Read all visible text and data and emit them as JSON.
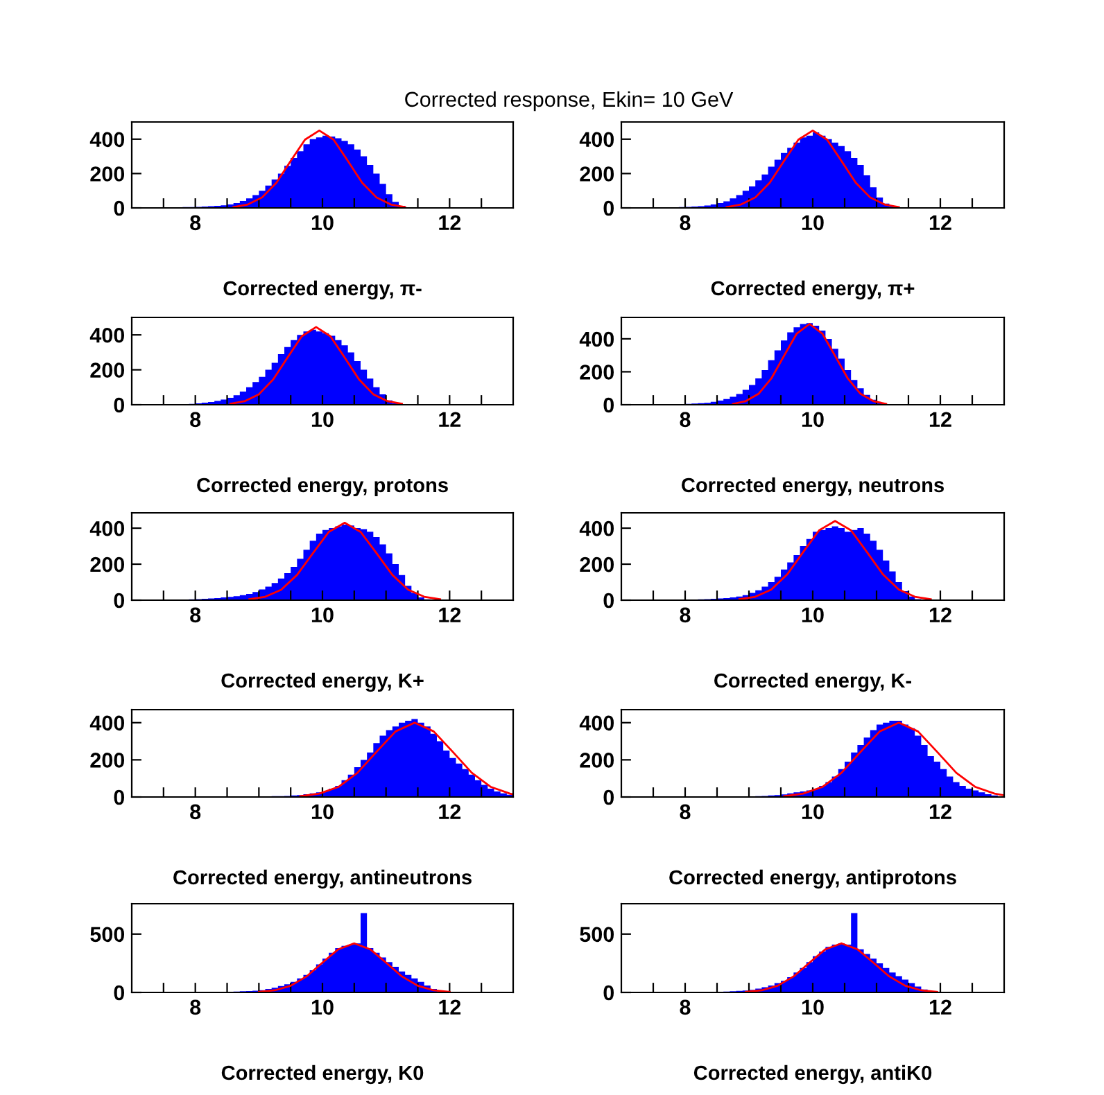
{
  "chart_data": [
    {
      "type": "histogram",
      "title": "Corrected response, Ekin= 10 GeV",
      "xlabel": "Corrected energy, π-",
      "xlim": [
        7,
        13
      ],
      "ylim": [
        0,
        500
      ],
      "xticks": [
        {
          "value": 7.5,
          "label": null
        },
        8,
        {
          "value": 8.5,
          "label": null
        },
        {
          "value": 9,
          "label": null
        },
        {
          "value": 9.5,
          "label": null
        },
        10,
        {
          "value": 10.5,
          "label": null
        },
        {
          "value": 11,
          "label": null
        },
        {
          "value": 11.5,
          "label": null
        },
        12,
        {
          "value": 12.5,
          "label": null
        }
      ],
      "yticks": [
        0,
        200,
        400
      ],
      "grid": false,
      "legend": false,
      "bins": [
        7.0,
        7.1,
        7.2,
        7.3,
        7.4,
        7.5,
        7.6,
        7.7,
        7.8,
        7.9,
        8.0,
        8.1,
        8.2,
        8.3,
        8.4,
        8.5,
        8.6,
        8.7,
        8.8,
        8.9,
        9.0,
        9.1,
        9.2,
        9.3,
        9.4,
        9.5,
        9.6,
        9.7,
        9.8,
        9.9,
        10.0,
        10.1,
        10.2,
        10.3,
        10.4,
        10.5,
        10.6,
        10.7,
        10.8,
        10.9,
        11.0,
        11.1,
        11.2,
        11.3,
        11.4,
        11.5,
        11.6,
        11.7,
        11.8,
        11.9,
        12.0,
        12.1,
        12.2,
        12.3,
        12.4,
        12.5,
        12.6,
        12.7,
        12.8,
        12.9,
        13.0
      ],
      "series": [
        {
          "type": "histogram",
          "color": "#0000ff",
          "values": [
            2,
            2,
            2,
            3,
            3,
            3,
            4,
            4,
            5,
            5,
            6,
            8,
            10,
            12,
            15,
            20,
            28,
            40,
            55,
            75,
            100,
            130,
            165,
            200,
            245,
            290,
            330,
            370,
            400,
            410,
            420,
            415,
            405,
            390,
            370,
            340,
            300,
            250,
            200,
            140,
            80,
            35,
            12,
            4,
            2,
            1,
            0,
            0,
            0,
            0,
            0,
            0,
            0,
            0,
            0,
            0,
            0,
            0,
            0,
            0
          ]
        },
        {
          "type": "line",
          "color": "#ff0000",
          "x": [
            8.6,
            8.825,
            9.05,
            9.275,
            9.5,
            9.725,
            9.95,
            10.175,
            10.4,
            10.625,
            10.85,
            11.075,
            11.3
          ],
          "values": [
            5,
            20,
            61,
            146,
            273,
            397,
            450,
            397,
            273,
            146,
            61,
            20,
            5
          ]
        }
      ]
    },
    {
      "type": "histogram",
      "xlabel": "Corrected energy, π+",
      "xlim": [
        7,
        13
      ],
      "ylim": [
        0,
        500
      ],
      "xticks": [
        {
          "value": 7.5,
          "label": null
        },
        8,
        {
          "value": 8.5,
          "label": null
        },
        {
          "value": 9,
          "label": null
        },
        {
          "value": 9.5,
          "label": null
        },
        10,
        {
          "value": 10.5,
          "label": null
        },
        {
          "value": 11,
          "label": null
        },
        {
          "value": 11.5,
          "label": null
        },
        12,
        {
          "value": 12.5,
          "label": null
        }
      ],
      "yticks": [
        0,
        200,
        400
      ],
      "grid": false,
      "legend": false,
      "bins": [
        7.0,
        7.1,
        7.2,
        7.3,
        7.4,
        7.5,
        7.6,
        7.7,
        7.8,
        7.9,
        8.0,
        8.1,
        8.2,
        8.3,
        8.4,
        8.5,
        8.6,
        8.7,
        8.8,
        8.9,
        9.0,
        9.1,
        9.2,
        9.3,
        9.4,
        9.5,
        9.6,
        9.7,
        9.8,
        9.9,
        10.0,
        10.1,
        10.2,
        10.3,
        10.4,
        10.5,
        10.6,
        10.7,
        10.8,
        10.9,
        11.0,
        11.1,
        11.2,
        11.3,
        11.4,
        11.5,
        11.6,
        11.7,
        11.8,
        11.9,
        12.0,
        12.1,
        12.2,
        12.3,
        12.4,
        12.5,
        12.6,
        12.7,
        12.8,
        12.9,
        13.0
      ],
      "series": [
        {
          "type": "histogram",
          "color": "#0000ff",
          "values": [
            1,
            1,
            2,
            2,
            2,
            3,
            3,
            3,
            4,
            5,
            6,
            8,
            10,
            14,
            20,
            28,
            38,
            55,
            75,
            100,
            125,
            160,
            195,
            240,
            280,
            320,
            350,
            380,
            410,
            420,
            440,
            420,
            400,
            380,
            360,
            330,
            290,
            250,
            190,
            120,
            60,
            25,
            8,
            3,
            1,
            0,
            0,
            0,
            0,
            0,
            0,
            0,
            0,
            0,
            0,
            0,
            0,
            0,
            0,
            0
          ]
        },
        {
          "type": "line",
          "color": "#ff0000",
          "x": [
            8.65,
            8.875,
            9.1,
            9.325,
            9.55,
            9.775,
            10.0,
            10.225,
            10.45,
            10.675,
            10.9,
            11.125,
            11.35
          ],
          "values": [
            5,
            20,
            61,
            146,
            273,
            397,
            450,
            397,
            273,
            146,
            61,
            20,
            5
          ]
        }
      ]
    },
    {
      "type": "histogram",
      "xlabel": "Corrected energy, protons",
      "xlim": [
        7,
        13
      ],
      "ylim": [
        0,
        500
      ],
      "xticks": [
        {
          "value": 7.5,
          "label": null
        },
        8,
        {
          "value": 8.5,
          "label": null
        },
        {
          "value": 9,
          "label": null
        },
        {
          "value": 9.5,
          "label": null
        },
        10,
        {
          "value": 10.5,
          "label": null
        },
        {
          "value": 11,
          "label": null
        },
        {
          "value": 11.5,
          "label": null
        },
        12,
        {
          "value": 12.5,
          "label": null
        }
      ],
      "yticks": [
        0,
        200,
        400
      ],
      "grid": false,
      "legend": false,
      "bins": [
        7.0,
        7.1,
        7.2,
        7.3,
        7.4,
        7.5,
        7.6,
        7.7,
        7.8,
        7.9,
        8.0,
        8.1,
        8.2,
        8.3,
        8.4,
        8.5,
        8.6,
        8.7,
        8.8,
        8.9,
        9.0,
        9.1,
        9.2,
        9.3,
        9.4,
        9.5,
        9.6,
        9.7,
        9.8,
        9.9,
        10.0,
        10.1,
        10.2,
        10.3,
        10.4,
        10.5,
        10.6,
        10.7,
        10.8,
        10.9,
        11.0,
        11.1,
        11.2,
        11.3,
        11.4,
        11.5,
        11.6,
        11.7,
        11.8,
        11.9,
        12.0,
        12.1,
        12.2,
        12.3,
        12.4,
        12.5,
        12.6,
        12.7,
        12.8,
        12.9,
        13.0
      ],
      "series": [
        {
          "type": "histogram",
          "color": "#0000ff",
          "values": [
            1,
            1,
            1,
            2,
            2,
            2,
            3,
            3,
            4,
            5,
            8,
            12,
            16,
            22,
            30,
            40,
            55,
            75,
            100,
            130,
            160,
            200,
            240,
            290,
            330,
            370,
            400,
            420,
            430,
            420,
            410,
            395,
            370,
            340,
            300,
            250,
            200,
            150,
            100,
            60,
            25,
            8,
            3,
            1,
            0,
            0,
            0,
            0,
            0,
            0,
            0,
            0,
            0,
            0,
            0,
            0,
            0,
            0,
            0,
            0
          ]
        },
        {
          "type": "line",
          "color": "#ff0000",
          "x": [
            8.55,
            8.775,
            9.0,
            9.225,
            9.45,
            9.675,
            9.9,
            10.125,
            10.35,
            10.575,
            10.8,
            11.025,
            11.25
          ],
          "values": [
            5,
            20,
            60,
            145,
            270,
            392,
            445,
            392,
            270,
            145,
            60,
            20,
            5
          ]
        }
      ]
    },
    {
      "type": "histogram",
      "xlabel": "Corrected energy, neutrons",
      "xlim": [
        7,
        13
      ],
      "ylim": [
        0,
        530
      ],
      "xticks": [
        {
          "value": 7.5,
          "label": null
        },
        8,
        {
          "value": 8.5,
          "label": null
        },
        {
          "value": 9,
          "label": null
        },
        {
          "value": 9.5,
          "label": null
        },
        10,
        {
          "value": 10.5,
          "label": null
        },
        {
          "value": 11,
          "label": null
        },
        {
          "value": 11.5,
          "label": null
        },
        12,
        {
          "value": 12.5,
          "label": null
        }
      ],
      "yticks": [
        0,
        200,
        400
      ],
      "grid": false,
      "legend": false,
      "bins": [
        7.0,
        7.1,
        7.2,
        7.3,
        7.4,
        7.5,
        7.6,
        7.7,
        7.8,
        7.9,
        8.0,
        8.1,
        8.2,
        8.3,
        8.4,
        8.5,
        8.6,
        8.7,
        8.8,
        8.9,
        9.0,
        9.1,
        9.2,
        9.3,
        9.4,
        9.5,
        9.6,
        9.7,
        9.8,
        9.9,
        10.0,
        10.1,
        10.2,
        10.3,
        10.4,
        10.5,
        10.6,
        10.7,
        10.8,
        10.9,
        11.0,
        11.1,
        11.2,
        11.3,
        11.4,
        11.5,
        11.6,
        11.7,
        11.8,
        11.9,
        12.0,
        12.1,
        12.2,
        12.3,
        12.4,
        12.5,
        12.6,
        12.7,
        12.8,
        12.9,
        13.0
      ],
      "series": [
        {
          "type": "histogram",
          "color": "#0000ff",
          "values": [
            1,
            1,
            1,
            1,
            2,
            2,
            2,
            3,
            3,
            4,
            5,
            7,
            9,
            12,
            18,
            25,
            35,
            48,
            65,
            90,
            120,
            160,
            210,
            270,
            330,
            390,
            440,
            470,
            490,
            495,
            480,
            450,
            400,
            340,
            280,
            210,
            150,
            100,
            60,
            30,
            10,
            3,
            1,
            0,
            0,
            0,
            0,
            0,
            0,
            0,
            0,
            0,
            0,
            0,
            0,
            0,
            0,
            0,
            0,
            0
          ]
        },
        {
          "type": "line",
          "color": "#ff0000",
          "x": [
            8.75,
            8.95,
            9.15,
            9.35,
            9.55,
            9.75,
            9.95,
            10.15,
            10.35,
            10.55,
            10.75,
            10.95,
            11.15
          ],
          "values": [
            5,
            22,
            66,
            159,
            297,
            432,
            490,
            432,
            297,
            159,
            66,
            22,
            5
          ]
        }
      ]
    },
    {
      "type": "histogram",
      "xlabel": "Corrected energy, K+",
      "xlim": [
        7,
        13
      ],
      "ylim": [
        0,
        485
      ],
      "xticks": [
        {
          "value": 7.5,
          "label": null
        },
        8,
        {
          "value": 8.5,
          "label": null
        },
        {
          "value": 9,
          "label": null
        },
        {
          "value": 9.5,
          "label": null
        },
        10,
        {
          "value": 10.5,
          "label": null
        },
        {
          "value": 11,
          "label": null
        },
        {
          "value": 11.5,
          "label": null
        },
        12,
        {
          "value": 12.5,
          "label": null
        }
      ],
      "yticks": [
        0,
        200,
        400
      ],
      "grid": false,
      "legend": false,
      "bins": [
        7.0,
        7.1,
        7.2,
        7.3,
        7.4,
        7.5,
        7.6,
        7.7,
        7.8,
        7.9,
        8.0,
        8.1,
        8.2,
        8.3,
        8.4,
        8.5,
        8.6,
        8.7,
        8.8,
        8.9,
        9.0,
        9.1,
        9.2,
        9.3,
        9.4,
        9.5,
        9.6,
        9.7,
        9.8,
        9.9,
        10.0,
        10.1,
        10.2,
        10.3,
        10.4,
        10.5,
        10.6,
        10.7,
        10.8,
        10.9,
        11.0,
        11.1,
        11.2,
        11.3,
        11.4,
        11.5,
        11.6,
        11.7,
        11.8,
        11.9,
        12.0,
        12.1,
        12.2,
        12.3,
        12.4,
        12.5,
        12.6,
        12.7,
        12.8,
        12.9,
        13.0
      ],
      "series": [
        {
          "type": "histogram",
          "color": "#0000ff",
          "values": [
            0,
            0,
            0,
            0,
            1,
            1,
            2,
            3,
            4,
            5,
            6,
            8,
            10,
            12,
            15,
            18,
            22,
            28,
            35,
            45,
            60,
            75,
            95,
            120,
            150,
            185,
            230,
            280,
            330,
            370,
            390,
            400,
            410,
            420,
            415,
            400,
            395,
            380,
            350,
            310,
            260,
            200,
            140,
            80,
            40,
            15,
            5,
            2,
            1,
            0,
            0,
            0,
            0,
            0,
            0,
            0,
            0,
            0,
            0,
            0
          ]
        },
        {
          "type": "line",
          "color": "#ff0000",
          "x": [
            8.85,
            9.1,
            9.35,
            9.6,
            9.85,
            10.1,
            10.35,
            10.6,
            10.85,
            11.1,
            11.35,
            11.6,
            11.85
          ],
          "values": [
            5,
            19,
            58,
            140,
            261,
            379,
            430,
            379,
            261,
            140,
            58,
            19,
            5
          ]
        }
      ]
    },
    {
      "type": "histogram",
      "xlabel": "Corrected energy, K-",
      "xlim": [
        7,
        13
      ],
      "ylim": [
        0,
        485
      ],
      "xticks": [
        {
          "value": 7.5,
          "label": null
        },
        8,
        {
          "value": 8.5,
          "label": null
        },
        {
          "value": 9,
          "label": null
        },
        {
          "value": 9.5,
          "label": null
        },
        10,
        {
          "value": 10.5,
          "label": null
        },
        {
          "value": 11,
          "label": null
        },
        {
          "value": 11.5,
          "label": null
        },
        12,
        {
          "value": 12.5,
          "label": null
        }
      ],
      "yticks": [
        0,
        200,
        400
      ],
      "grid": false,
      "legend": false,
      "bins": [
        7.0,
        7.1,
        7.2,
        7.3,
        7.4,
        7.5,
        7.6,
        7.7,
        7.8,
        7.9,
        8.0,
        8.1,
        8.2,
        8.3,
        8.4,
        8.5,
        8.6,
        8.7,
        8.8,
        8.9,
        9.0,
        9.1,
        9.2,
        9.3,
        9.4,
        9.5,
        9.6,
        9.7,
        9.8,
        9.9,
        10.0,
        10.1,
        10.2,
        10.3,
        10.4,
        10.5,
        10.6,
        10.7,
        10.8,
        10.9,
        11.0,
        11.1,
        11.2,
        11.3,
        11.4,
        11.5,
        11.6,
        11.7,
        11.8,
        11.9,
        12.0,
        12.1,
        12.2,
        12.3,
        12.4,
        12.5,
        12.6,
        12.7,
        12.8,
        12.9,
        13.0
      ],
      "series": [
        {
          "type": "histogram",
          "color": "#0000ff",
          "values": [
            0,
            0,
            0,
            0,
            1,
            1,
            1,
            2,
            2,
            3,
            3,
            4,
            5,
            6,
            8,
            10,
            12,
            15,
            20,
            28,
            40,
            55,
            75,
            100,
            130,
            170,
            210,
            250,
            300,
            340,
            380,
            390,
            400,
            410,
            400,
            380,
            390,
            400,
            370,
            330,
            280,
            220,
            160,
            100,
            50,
            20,
            6,
            2,
            0,
            0,
            0,
            0,
            0,
            0,
            0,
            0,
            0,
            0,
            0,
            0
          ]
        },
        {
          "type": "line",
          "color": "#ff0000",
          "x": [
            8.85,
            9.1,
            9.35,
            9.6,
            9.85,
            10.1,
            10.35,
            10.6,
            10.85,
            11.1,
            11.35,
            11.6,
            11.85
          ],
          "values": [
            5,
            19,
            59,
            143,
            267,
            388,
            440,
            388,
            267,
            143,
            59,
            19,
            5
          ]
        }
      ]
    },
    {
      "type": "histogram",
      "xlabel": "Corrected energy, antineutrons",
      "xlim": [
        7,
        13
      ],
      "ylim": [
        0,
        470
      ],
      "xticks": [
        {
          "value": 7.5,
          "label": null
        },
        8,
        {
          "value": 8.5,
          "label": null
        },
        {
          "value": 9,
          "label": null
        },
        {
          "value": 9.5,
          "label": null
        },
        10,
        {
          "value": 10.5,
          "label": null
        },
        {
          "value": 11,
          "label": null
        },
        {
          "value": 11.5,
          "label": null
        },
        12,
        {
          "value": 12.5,
          "label": null
        }
      ],
      "yticks": [
        0,
        200,
        400
      ],
      "grid": false,
      "legend": false,
      "bins": [
        7.0,
        7.1,
        7.2,
        7.3,
        7.4,
        7.5,
        7.6,
        7.7,
        7.8,
        7.9,
        8.0,
        8.1,
        8.2,
        8.3,
        8.4,
        8.5,
        8.6,
        8.7,
        8.8,
        8.9,
        9.0,
        9.1,
        9.2,
        9.3,
        9.4,
        9.5,
        9.6,
        9.7,
        9.8,
        9.9,
        10.0,
        10.1,
        10.2,
        10.3,
        10.4,
        10.5,
        10.6,
        10.7,
        10.8,
        10.9,
        11.0,
        11.1,
        11.2,
        11.3,
        11.4,
        11.5,
        11.6,
        11.7,
        11.8,
        11.9,
        12.0,
        12.1,
        12.2,
        12.3,
        12.4,
        12.5,
        12.6,
        12.7,
        12.8,
        12.9,
        13.0
      ],
      "series": [
        {
          "type": "histogram",
          "color": "#0000ff",
          "values": [
            0,
            0,
            0,
            0,
            0,
            0,
            0,
            0,
            0,
            0,
            0,
            0,
            1,
            1,
            1,
            1,
            2,
            2,
            2,
            3,
            3,
            4,
            5,
            5,
            6,
            8,
            10,
            15,
            20,
            25,
            30,
            45,
            60,
            90,
            120,
            160,
            200,
            240,
            290,
            330,
            360,
            380,
            400,
            410,
            420,
            400,
            380,
            340,
            300,
            250,
            210,
            180,
            150,
            120,
            90,
            65,
            45,
            30,
            20,
            12
          ]
        },
        {
          "type": "line",
          "color": "#ff0000",
          "x": [
            9.65,
            9.95,
            10.25,
            10.55,
            10.85,
            11.15,
            11.45,
            11.75,
            12.05,
            12.35,
            12.65,
            12.95,
            13.0
          ],
          "values": [
            4,
            18,
            54,
            130,
            243,
            353,
            400,
            353,
            243,
            130,
            54,
            18,
            14
          ]
        }
      ]
    },
    {
      "type": "histogram",
      "xlabel": "Corrected energy, antiprotons",
      "xlim": [
        7,
        13
      ],
      "ylim": [
        0,
        470
      ],
      "xticks": [
        {
          "value": 7.5,
          "label": null
        },
        8,
        {
          "value": 8.5,
          "label": null
        },
        {
          "value": 9,
          "label": null
        },
        {
          "value": 9.5,
          "label": null
        },
        10,
        {
          "value": 10.5,
          "label": null
        },
        {
          "value": 11,
          "label": null
        },
        {
          "value": 11.5,
          "label": null
        },
        12,
        {
          "value": 12.5,
          "label": null
        }
      ],
      "yticks": [
        0,
        200,
        400
      ],
      "grid": false,
      "legend": false,
      "bins": [
        7.0,
        7.1,
        7.2,
        7.3,
        7.4,
        7.5,
        7.6,
        7.7,
        7.8,
        7.9,
        8.0,
        8.1,
        8.2,
        8.3,
        8.4,
        8.5,
        8.6,
        8.7,
        8.8,
        8.9,
        9.0,
        9.1,
        9.2,
        9.3,
        9.4,
        9.5,
        9.6,
        9.7,
        9.8,
        9.9,
        10.0,
        10.1,
        10.2,
        10.3,
        10.4,
        10.5,
        10.6,
        10.7,
        10.8,
        10.9,
        11.0,
        11.1,
        11.2,
        11.3,
        11.4,
        11.5,
        11.6,
        11.7,
        11.8,
        11.9,
        12.0,
        12.1,
        12.2,
        12.3,
        12.4,
        12.5,
        12.6,
        12.7,
        12.8,
        12.9,
        13.0
      ],
      "series": [
        {
          "type": "histogram",
          "color": "#0000ff",
          "values": [
            0,
            0,
            0,
            0,
            0,
            0,
            0,
            0,
            0,
            0,
            0,
            0,
            1,
            1,
            1,
            1,
            2,
            2,
            2,
            3,
            4,
            5,
            6,
            8,
            10,
            14,
            20,
            25,
            30,
            35,
            45,
            60,
            80,
            110,
            150,
            190,
            240,
            280,
            320,
            360,
            390,
            400,
            410,
            410,
            390,
            370,
            330,
            280,
            220,
            190,
            150,
            110,
            80,
            60,
            45,
            35,
            25,
            15,
            8,
            4
          ]
        },
        {
          "type": "line",
          "color": "#ff0000",
          "x": [
            9.55,
            9.85,
            10.15,
            10.45,
            10.75,
            11.05,
            11.35,
            11.65,
            11.95,
            12.25,
            12.55,
            12.85,
            13.0
          ],
          "values": [
            4,
            18,
            54,
            130,
            243,
            353,
            400,
            353,
            243,
            130,
            54,
            18,
            9
          ]
        }
      ]
    },
    {
      "type": "histogram",
      "xlabel": "Corrected energy, K0",
      "xlim": [
        7,
        13
      ],
      "ylim": [
        0,
        760
      ],
      "xticks": [
        {
          "value": 7.5,
          "label": null
        },
        8,
        {
          "value": 8.5,
          "label": null
        },
        {
          "value": 9,
          "label": null
        },
        {
          "value": 9.5,
          "label": null
        },
        10,
        {
          "value": 10.5,
          "label": null
        },
        {
          "value": 11,
          "label": null
        },
        {
          "value": 11.5,
          "label": null
        },
        12,
        {
          "value": 12.5,
          "label": null
        }
      ],
      "yticks": [
        0,
        500
      ],
      "grid": false,
      "legend": false,
      "bins": [
        7.0,
        7.1,
        7.2,
        7.3,
        7.4,
        7.5,
        7.6,
        7.7,
        7.8,
        7.9,
        8.0,
        8.1,
        8.2,
        8.3,
        8.4,
        8.5,
        8.6,
        8.7,
        8.8,
        8.9,
        9.0,
        9.1,
        9.2,
        9.3,
        9.4,
        9.5,
        9.6,
        9.7,
        9.8,
        9.9,
        10.0,
        10.1,
        10.2,
        10.3,
        10.4,
        10.5,
        10.6,
        10.7,
        10.8,
        10.9,
        11.0,
        11.1,
        11.2,
        11.3,
        11.4,
        11.5,
        11.6,
        11.7,
        11.8,
        11.9,
        12.0,
        12.1,
        12.2,
        12.3,
        12.4,
        12.5,
        12.6,
        12.7,
        12.8,
        12.9,
        13.0
      ],
      "series": [
        {
          "type": "histogram",
          "color": "#0000ff",
          "values": [
            0,
            0,
            0,
            1,
            1,
            1,
            1,
            1,
            2,
            2,
            2,
            3,
            3,
            4,
            5,
            6,
            8,
            10,
            12,
            15,
            20,
            30,
            40,
            55,
            70,
            90,
            120,
            150,
            190,
            240,
            290,
            340,
            380,
            400,
            410,
            420,
            680,
            380,
            340,
            300,
            260,
            220,
            180,
            150,
            120,
            90,
            60,
            30,
            10,
            3,
            1,
            0,
            0,
            0,
            0,
            0,
            0,
            0,
            0,
            0
          ]
        },
        {
          "type": "line",
          "color": "#ff0000",
          "x": [
            9.0,
            9.25,
            9.5,
            9.75,
            10.0,
            10.25,
            10.5,
            10.75,
            11.0,
            11.25,
            11.5,
            11.75,
            12.0
          ],
          "values": [
            5,
            18,
            57,
            137,
            255,
            370,
            420,
            370,
            255,
            137,
            57,
            18,
            5
          ]
        }
      ]
    },
    {
      "type": "histogram",
      "xlabel": "Corrected energy, antiK0",
      "xlim": [
        7,
        13
      ],
      "ylim": [
        0,
        760
      ],
      "xticks": [
        {
          "value": 7.5,
          "label": null
        },
        8,
        {
          "value": 8.5,
          "label": null
        },
        {
          "value": 9,
          "label": null
        },
        {
          "value": 9.5,
          "label": null
        },
        10,
        {
          "value": 10.5,
          "label": null
        },
        {
          "value": 11,
          "label": null
        },
        {
          "value": 11.5,
          "label": null
        },
        12,
        {
          "value": 12.5,
          "label": null
        }
      ],
      "yticks": [
        0,
        500
      ],
      "grid": false,
      "legend": false,
      "bins": [
        7.0,
        7.1,
        7.2,
        7.3,
        7.4,
        7.5,
        7.6,
        7.7,
        7.8,
        7.9,
        8.0,
        8.1,
        8.2,
        8.3,
        8.4,
        8.5,
        8.6,
        8.7,
        8.8,
        8.9,
        9.0,
        9.1,
        9.2,
        9.3,
        9.4,
        9.5,
        9.6,
        9.7,
        9.8,
        9.9,
        10.0,
        10.1,
        10.2,
        10.3,
        10.4,
        10.5,
        10.6,
        10.7,
        10.8,
        10.9,
        11.0,
        11.1,
        11.2,
        11.3,
        11.4,
        11.5,
        11.6,
        11.7,
        11.8,
        11.9,
        12.0,
        12.1,
        12.2,
        12.3,
        12.4,
        12.5,
        12.6,
        12.7,
        12.8,
        12.9,
        13.0
      ],
      "series": [
        {
          "type": "histogram",
          "color": "#0000ff",
          "values": [
            0,
            0,
            0,
            1,
            1,
            1,
            1,
            1,
            2,
            2,
            2,
            3,
            3,
            4,
            5,
            6,
            8,
            10,
            13,
            17,
            22,
            32,
            45,
            60,
            80,
            100,
            130,
            170,
            210,
            260,
            310,
            350,
            390,
            410,
            420,
            410,
            680,
            370,
            330,
            290,
            250,
            210,
            170,
            140,
            110,
            80,
            50,
            25,
            8,
            2,
            1,
            0,
            0,
            0,
            0,
            0,
            0,
            0,
            0,
            0
          ]
        },
        {
          "type": "line",
          "color": "#ff0000",
          "x": [
            8.95,
            9.2,
            9.45,
            9.7,
            9.95,
            10.2,
            10.45,
            10.7,
            10.95,
            11.2,
            11.45,
            11.7,
            11.95
          ],
          "values": [
            5,
            18,
            57,
            137,
            255,
            370,
            420,
            370,
            255,
            137,
            57,
            18,
            5
          ]
        }
      ]
    }
  ]
}
